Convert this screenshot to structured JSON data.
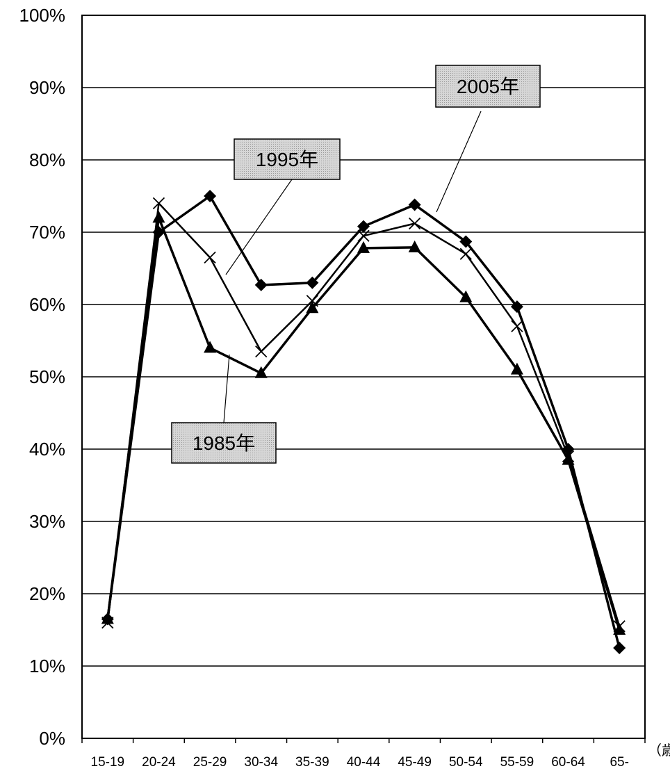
{
  "chart_data": {
    "type": "line",
    "categories": [
      "15-19",
      "20-24",
      "25-29",
      "30-34",
      "35-39",
      "40-44",
      "45-49",
      "50-54",
      "55-59",
      "60-64",
      "65-"
    ],
    "x_unit_label": "（歳）",
    "ylim": [
      0,
      100
    ],
    "y_ticks": [
      "0%",
      "10%",
      "20%",
      "30%",
      "40%",
      "50%",
      "60%",
      "70%",
      "80%",
      "90%",
      "100%"
    ],
    "grid": true,
    "series": [
      {
        "name": "1985年",
        "marker": "triangle",
        "values": [
          16.5,
          72,
          54,
          50.5,
          59.5,
          67.8,
          67.9,
          61,
          51,
          38.5,
          15
        ]
      },
      {
        "name": "1995年",
        "marker": "x",
        "values": [
          16,
          74,
          66.5,
          53.5,
          60.5,
          69.5,
          71.2,
          67,
          57,
          39,
          15.5
        ]
      },
      {
        "name": "2005年",
        "marker": "diamond",
        "values": [
          16.5,
          70,
          75,
          62.7,
          63,
          70.8,
          73.8,
          68.7,
          59.7,
          40,
          12.5
        ]
      }
    ],
    "callouts": [
      {
        "series": "2005年",
        "label": "2005年"
      },
      {
        "series": "1995年",
        "label": "1995年"
      },
      {
        "series": "1985年",
        "label": "1985年"
      }
    ]
  }
}
